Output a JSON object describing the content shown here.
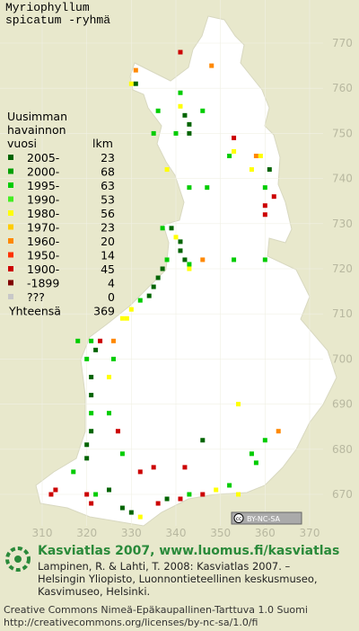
{
  "title": [
    "Myriophyllum",
    "spicatum -ryhmä"
  ],
  "legend": {
    "header": [
      "Uusimman",
      "havainnon",
      "vuosi"
    ],
    "count_header": "lkm",
    "entries": [
      {
        "label": "2005-",
        "count": 23,
        "color": "#006400"
      },
      {
        "label": "2000-",
        "count": 68,
        "color": "#00a000"
      },
      {
        "label": "1995-",
        "count": 63,
        "color": "#00cc00"
      },
      {
        "label": "1990-",
        "count": 53,
        "color": "#44ee22"
      },
      {
        "label": "1980-",
        "count": 56,
        "color": "#ffff00"
      },
      {
        "label": "1970-",
        "count": 23,
        "color": "#ffcc00"
      },
      {
        "label": "1960-",
        "count": 20,
        "color": "#ff8800"
      },
      {
        "label": "1950-",
        "count": 14,
        "color": "#ff3300"
      },
      {
        "label": "1900-",
        "count": 45,
        "color": "#cc0000"
      },
      {
        "label": "-1899",
        "count": 4,
        "color": "#800000"
      },
      {
        "label": "???",
        "count": 0,
        "color": "#c8c8c8"
      }
    ],
    "total_label": "Yhteensä",
    "total": 369
  },
  "grid": {
    "xticks": [
      310,
      320,
      330,
      340,
      350,
      360,
      370
    ],
    "yticks": [
      770,
      760,
      750,
      740,
      730,
      720,
      710,
      700,
      690,
      680,
      670
    ]
  },
  "observations": [
    [
      331,
      764,
      6
    ],
    [
      330,
      761,
      4
    ],
    [
      331,
      761,
      0
    ],
    [
      341,
      759,
      2
    ],
    [
      341,
      768,
      8
    ],
    [
      348,
      765,
      6
    ],
    [
      336,
      755,
      2
    ],
    [
      341,
      756,
      4
    ],
    [
      342,
      754,
      0
    ],
    [
      343,
      752,
      0
    ],
    [
      343,
      750,
      0
    ],
    [
      346,
      755,
      2
    ],
    [
      340,
      750,
      2
    ],
    [
      335,
      750,
      2
    ],
    [
      353,
      749,
      8
    ],
    [
      352,
      745,
      2
    ],
    [
      353,
      746,
      4
    ],
    [
      358,
      745,
      6
    ],
    [
      359,
      745,
      4
    ],
    [
      361,
      742,
      0
    ],
    [
      357,
      742,
      4
    ],
    [
      360,
      738,
      2
    ],
    [
      343,
      738,
      2
    ],
    [
      347,
      738,
      2
    ],
    [
      338,
      742,
      4
    ],
    [
      360,
      734,
      8
    ],
    [
      360,
      732,
      8
    ],
    [
      362,
      736,
      8
    ],
    [
      337,
      729,
      2
    ],
    [
      339,
      729,
      0
    ],
    [
      341,
      726,
      0
    ],
    [
      341,
      724,
      0
    ],
    [
      342,
      722,
      0
    ],
    [
      343,
      721,
      2
    ],
    [
      338,
      722,
      2
    ],
    [
      337,
      720,
      0
    ],
    [
      336,
      718,
      0
    ],
    [
      335,
      716,
      0
    ],
    [
      334,
      714,
      0
    ],
    [
      332,
      713,
      2
    ],
    [
      330,
      711,
      4
    ],
    [
      329,
      709,
      4
    ],
    [
      328,
      709,
      4
    ],
    [
      340,
      727,
      4
    ],
    [
      343,
      720,
      4
    ],
    [
      353,
      722,
      2
    ],
    [
      360,
      722,
      2
    ],
    [
      346,
      722,
      6
    ],
    [
      321,
      704,
      2
    ],
    [
      322,
      702,
      0
    ],
    [
      323,
      704,
      8
    ],
    [
      326,
      704,
      6
    ],
    [
      320,
      700,
      2
    ],
    [
      321,
      696,
      0
    ],
    [
      321,
      692,
      0
    ],
    [
      321,
      688,
      2
    ],
    [
      321,
      684,
      0
    ],
    [
      320,
      681,
      0
    ],
    [
      325,
      696,
      4
    ],
    [
      325,
      688,
      2
    ],
    [
      327,
      684,
      8
    ],
    [
      328,
      679,
      2
    ],
    [
      320,
      678,
      0
    ],
    [
      317,
      675,
      2
    ],
    [
      313,
      671,
      8
    ],
    [
      312,
      670,
      8
    ],
    [
      320,
      670,
      8
    ],
    [
      321,
      668,
      8
    ],
    [
      322,
      670,
      2
    ],
    [
      325,
      671,
      0
    ],
    [
      328,
      667,
      0
    ],
    [
      330,
      666,
      0
    ],
    [
      332,
      665,
      4
    ],
    [
      336,
      668,
      8
    ],
    [
      338,
      669,
      0
    ],
    [
      341,
      669,
      8
    ],
    [
      343,
      670,
      2
    ],
    [
      346,
      670,
      8
    ],
    [
      349,
      671,
      4
    ],
    [
      352,
      672,
      2
    ],
    [
      354,
      670,
      4
    ],
    [
      357,
      679,
      2
    ],
    [
      360,
      682,
      2
    ],
    [
      363,
      684,
      6
    ],
    [
      354,
      690,
      4
    ],
    [
      358,
      677,
      2
    ],
    [
      346,
      682,
      0
    ],
    [
      342,
      676,
      8
    ],
    [
      335,
      676,
      8
    ],
    [
      332,
      675,
      8
    ],
    [
      326,
      700,
      2
    ],
    [
      318,
      704,
      2
    ]
  ],
  "badge": {
    "cc": "cc",
    "text": "BY-NC-SA"
  },
  "footer": {
    "title": "Kasviatlas 2007, www.luomus.fi/kasviatlas",
    "citation": [
      "Lampinen, R. & Lahti, T. 2008: Kasviatlas 2007. –",
      "Helsingin Yliopisto, Luonnontieteellinen keskusmuseo,",
      "Kasvimuseo, Helsinki."
    ],
    "license": [
      "Creative Commons Nimeä-Epäkaupallinen-Tarttuva 1.0 Suomi",
      "http://creativecommons.org/licenses/by-nc-sa/1.0/fi"
    ]
  }
}
